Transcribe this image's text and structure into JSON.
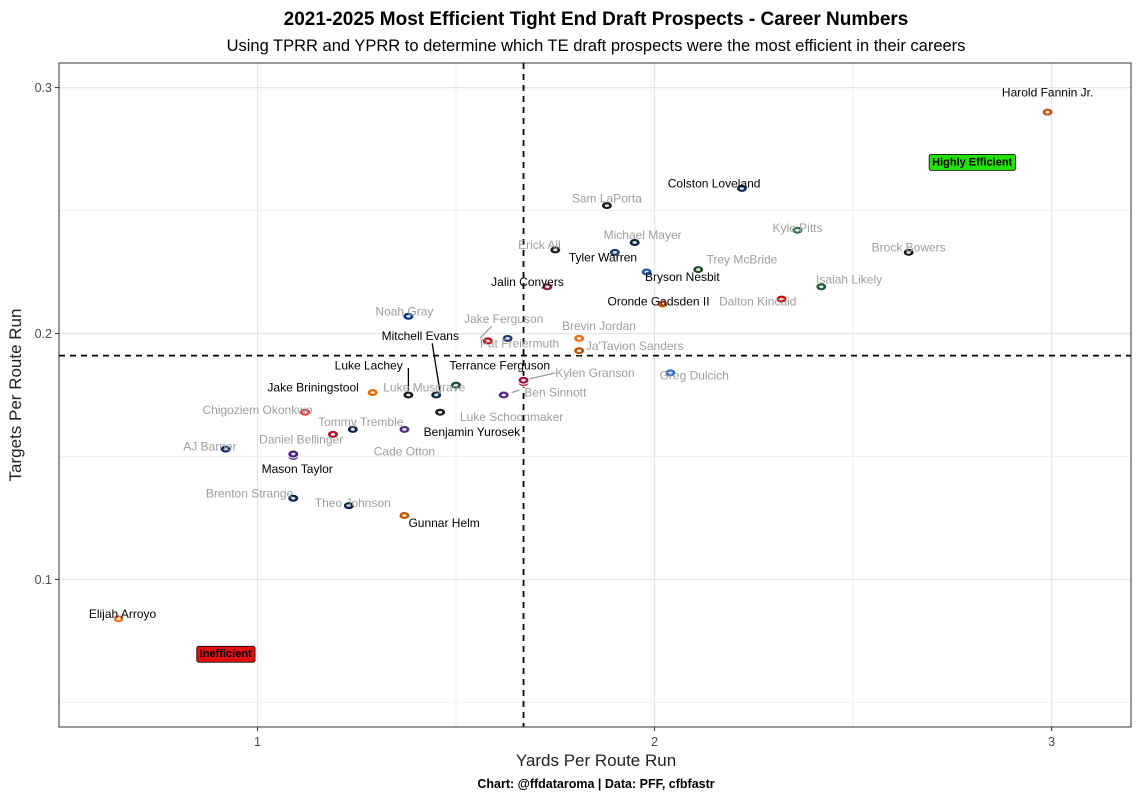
{
  "chart_data": {
    "type": "scatter",
    "title": "2021-2025 Most Efficient Tight End Draft Prospects - Career Numbers",
    "subtitle": "Using TPRR and YPRR to determine which TE draft prospects were the most efficient in their careers",
    "xlabel": "Yards Per Route Run",
    "ylabel": "Targets Per Route Run",
    "caption": "Chart: @ffdataroma | Data: PFF, cfbfastr",
    "xlim": [
      0.5,
      3.2
    ],
    "ylim": [
      0.04,
      0.31
    ],
    "x_ticks": [
      {
        "value": 1,
        "label": "1"
      },
      {
        "value": 2,
        "label": "2"
      },
      {
        "value": 3,
        "label": "3"
      }
    ],
    "y_ticks": [
      {
        "value": 0.1,
        "label": "0.1"
      },
      {
        "value": 0.2,
        "label": "0.2"
      },
      {
        "value": 0.3,
        "label": "0.3"
      }
    ],
    "x_reference": 1.67,
    "y_reference": 0.191,
    "grid": true,
    "quadrant_labels": [
      {
        "text": "Highly Efficient",
        "x": 2.8,
        "y": 0.27,
        "fill": "#22e000"
      },
      {
        "text": "Inefficient",
        "x": 0.92,
        "y": 0.07,
        "fill": "#e01010"
      }
    ],
    "highlight_color": "#000000",
    "muted_color": "#9e9e9e",
    "points": [
      {
        "name": "Harold Fannin Jr.",
        "x": 2.99,
        "y": 0.29,
        "highlight": true,
        "color": "#c8501e",
        "lx": 2.99,
        "ly": 0.298
      },
      {
        "name": "Colston Loveland",
        "x": 2.22,
        "y": 0.259,
        "highlight": true,
        "color": "#0b2a55",
        "lx": 2.15,
        "ly": 0.261
      },
      {
        "name": "Sam LaPorta",
        "x": 1.88,
        "y": 0.252,
        "highlight": false,
        "color": "#1a1a1a",
        "lx": 1.88,
        "ly": 0.255
      },
      {
        "name": "Kyle Pitts",
        "x": 2.36,
        "y": 0.242,
        "highlight": false,
        "color": "#2b6e4a",
        "lx": 2.36,
        "ly": 0.243
      },
      {
        "name": "Michael Mayer",
        "x": 1.95,
        "y": 0.237,
        "highlight": false,
        "color": "#0c2340",
        "lx": 1.97,
        "ly": 0.24
      },
      {
        "name": "Erick All",
        "x": 1.75,
        "y": 0.234,
        "highlight": false,
        "color": "#1a1a1a",
        "lx": 1.71,
        "ly": 0.236
      },
      {
        "name": "Brock Bowers",
        "x": 2.64,
        "y": 0.233,
        "highlight": false,
        "color": "#1a1a1a",
        "lx": 2.64,
        "ly": 0.235
      },
      {
        "name": "Tyler Warren",
        "x": 1.9,
        "y": 0.233,
        "highlight": true,
        "color": "#1e3a6e",
        "lx": 1.87,
        "ly": 0.231
      },
      {
        "name": "Trey McBride",
        "x": 2.11,
        "y": 0.226,
        "highlight": false,
        "color": "#1e4d2b",
        "lx": 2.22,
        "ly": 0.23
      },
      {
        "name": "Bryson Nesbit",
        "x": 1.98,
        "y": 0.225,
        "highlight": true,
        "color": "#1e5aa8",
        "lx": 2.07,
        "ly": 0.223
      },
      {
        "name": "Isaiah Likely",
        "x": 2.42,
        "y": 0.219,
        "highlight": false,
        "color": "#1e5a3c",
        "lx": 2.49,
        "ly": 0.222
      },
      {
        "name": "Jalin Conyers",
        "x": 1.73,
        "y": 0.219,
        "highlight": true,
        "color": "#8c1d40",
        "lx": 1.68,
        "ly": 0.221
      },
      {
        "name": "Dalton Kincaid",
        "x": 2.32,
        "y": 0.214,
        "highlight": false,
        "color": "#cc0000",
        "lx": 2.26,
        "ly": 0.213
      },
      {
        "name": "Oronde Gadsden II",
        "x": 2.02,
        "y": 0.212,
        "highlight": true,
        "color": "#e05a10",
        "lx": 2.01,
        "ly": 0.213
      },
      {
        "name": "Noah Gray",
        "x": 1.38,
        "y": 0.207,
        "highlight": false,
        "color": "#003087",
        "lx": 1.37,
        "ly": 0.209
      },
      {
        "name": "Jake Ferguson",
        "x": 1.58,
        "y": 0.197,
        "highlight": false,
        "color": "#c5050c",
        "lx": 1.62,
        "ly": 0.206
      },
      {
        "name": "Brevin Jordan",
        "x": 1.81,
        "y": 0.198,
        "highlight": false,
        "color": "#e86a10",
        "lx": 1.86,
        "ly": 0.203
      },
      {
        "name": "Mitchell Evans",
        "x": 1.45,
        "y": 0.175,
        "highlight": true,
        "color": "#0c2340",
        "lx": 1.41,
        "ly": 0.199
      },
      {
        "name": "Pat Freiermuth",
        "x": 1.63,
        "y": 0.198,
        "highlight": false,
        "color": "#1e3a6e",
        "lx": 1.66,
        "ly": 0.196
      },
      {
        "name": "Ja'Tavion Sanders",
        "x": 1.81,
        "y": 0.193,
        "highlight": false,
        "color": "#bf5700",
        "lx": 1.95,
        "ly": 0.195
      },
      {
        "name": "Terrance Ferguson",
        "x": 1.67,
        "y": 0.18,
        "highlight": true,
        "color": "#c41230",
        "lx": 1.61,
        "ly": 0.187
      },
      {
        "name": "Luke Lachey",
        "x": 1.38,
        "y": 0.175,
        "highlight": true,
        "color": "#1a1a1a",
        "lx": 1.28,
        "ly": 0.187
      },
      {
        "name": "Kylen Granson",
        "x": 1.67,
        "y": 0.181,
        "highlight": false,
        "color": "#8c1d40",
        "lx": 1.85,
        "ly": 0.184
      },
      {
        "name": "Greg Dulcich",
        "x": 2.04,
        "y": 0.184,
        "highlight": false,
        "color": "#2d68c4",
        "lx": 2.1,
        "ly": 0.183
      },
      {
        "name": "Luke Musgrave",
        "x": 1.5,
        "y": 0.179,
        "highlight": false,
        "color": "#154733",
        "lx": 1.42,
        "ly": 0.178
      },
      {
        "name": "Jake Briningstool",
        "x": 1.29,
        "y": 0.176,
        "highlight": true,
        "color": "#f56600",
        "lx": 1.14,
        "ly": 0.178
      },
      {
        "name": "Ben Sinnott",
        "x": 1.62,
        "y": 0.175,
        "highlight": false,
        "color": "#512888",
        "lx": 1.75,
        "ly": 0.176
      },
      {
        "name": "Chigoziem Okonkwo",
        "x": 1.12,
        "y": 0.168,
        "highlight": false,
        "color": "#e03a3e",
        "lx": 1.0,
        "ly": 0.169
      },
      {
        "name": "Luke Schoonmaker",
        "x": 1.46,
        "y": 0.168,
        "highlight": false,
        "color": "#1a1a1a",
        "lx": 1.64,
        "ly": 0.166
      },
      {
        "name": "Tommy Tremble",
        "x": 1.24,
        "y": 0.161,
        "highlight": false,
        "color": "#0c2340",
        "lx": 1.26,
        "ly": 0.164
      },
      {
        "name": "Benjamin Yurosek",
        "x": 1.37,
        "y": 0.161,
        "highlight": true,
        "color": "#4b2e83",
        "lx": 1.54,
        "ly": 0.16
      },
      {
        "name": "Daniel Bellinger",
        "x": 1.19,
        "y": 0.159,
        "highlight": false,
        "color": "#a6192e",
        "lx": 1.11,
        "ly": 0.157
      },
      {
        "name": "AJ Barner",
        "x": 0.92,
        "y": 0.153,
        "highlight": false,
        "color": "#0b2a55",
        "lx": 0.88,
        "ly": 0.154
      },
      {
        "name": "Cade Otton",
        "x": 1.09,
        "y": 0.15,
        "highlight": false,
        "color": "#4b2e83",
        "lx": 1.37,
        "ly": 0.152
      },
      {
        "name": "Mason Taylor",
        "x": 1.09,
        "y": 0.151,
        "highlight": true,
        "color": "#461d7c",
        "lx": 1.1,
        "ly": 0.145
      },
      {
        "name": "Brenton Strange",
        "x": 1.09,
        "y": 0.133,
        "highlight": false,
        "color": "#041e42",
        "lx": 0.98,
        "ly": 0.135
      },
      {
        "name": "Theo Johnson",
        "x": 1.23,
        "y": 0.13,
        "highlight": false,
        "color": "#041e42",
        "lx": 1.24,
        "ly": 0.131
      },
      {
        "name": "Gunnar Helm",
        "x": 1.37,
        "y": 0.126,
        "highlight": true,
        "color": "#bf5700",
        "lx": 1.47,
        "ly": 0.123
      },
      {
        "name": "Elijah Arroyo",
        "x": 0.65,
        "y": 0.084,
        "highlight": true,
        "color": "#f47321",
        "lx": 0.66,
        "ly": 0.086
      }
    ],
    "leader_lines": [
      {
        "name": "Mitchell Evans",
        "x1": 1.44,
        "y1": 0.196,
        "x2": 1.46,
        "y2": 0.176
      },
      {
        "name": "Luke Lachey",
        "x1": 1.38,
        "y1": 0.186,
        "x2": 1.38,
        "y2": 0.176
      },
      {
        "name": "Jake Ferguson",
        "x1": 1.59,
        "y1": 0.203,
        "x2": 1.56,
        "y2": 0.198
      },
      {
        "name": "Kylen Granson",
        "x1": 1.75,
        "y1": 0.184,
        "x2": 1.67,
        "y2": 0.181
      },
      {
        "name": "Ben Sinnott",
        "x1": 1.66,
        "y1": 0.177,
        "x2": 1.64,
        "y2": 0.176
      }
    ]
  }
}
